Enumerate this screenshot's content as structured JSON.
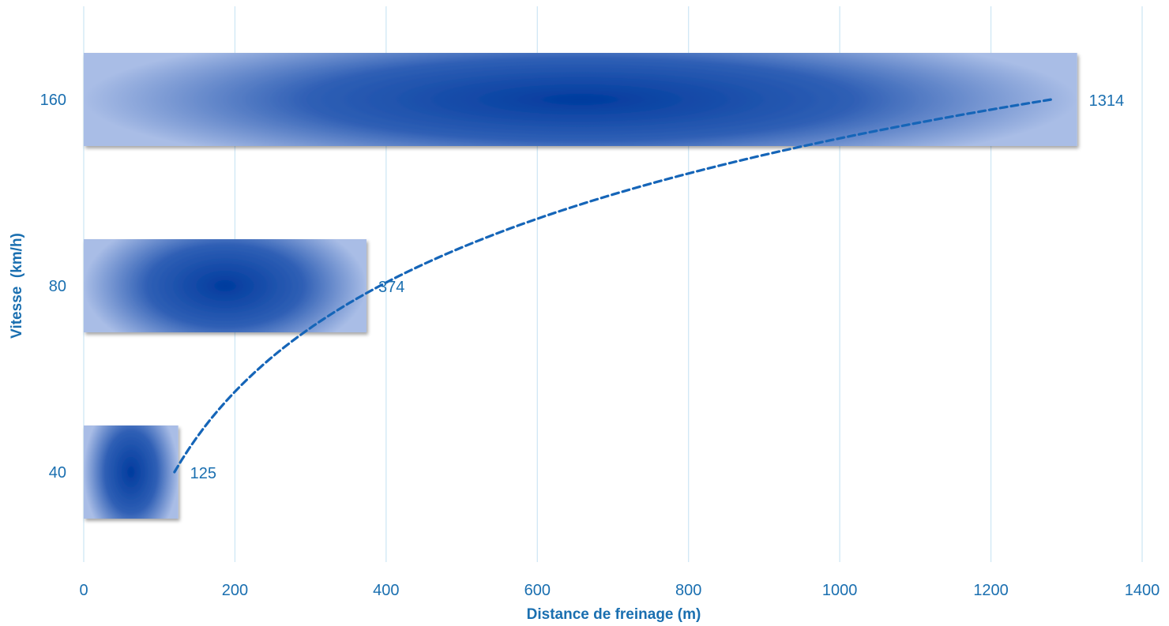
{
  "chart_data": {
    "type": "bar",
    "orientation": "horizontal",
    "categories": [
      "40",
      "80",
      "160"
    ],
    "values": [
      125,
      374,
      1314
    ],
    "data_labels": [
      "125",
      "374",
      "1314"
    ],
    "xlabel": "Distance de freinage (m)",
    "ylabel": "Vitesse  (km/h)",
    "xlim": [
      0,
      1400
    ],
    "x_ticks": [
      "0",
      "200",
      "400",
      "600",
      "800",
      "1000",
      "1200",
      "1400"
    ],
    "grid": "vertical",
    "trendline": {
      "style": "dashed",
      "type": "logarithmic",
      "from": [
        120,
        "40"
      ],
      "to": [
        1280,
        "160"
      ]
    },
    "colors": {
      "bar_center": "#003b9e",
      "bar_edge": "#a9bde6",
      "text": "#1a6fb0",
      "trendline": "#1565b8",
      "grid": "#cfe7f5"
    }
  }
}
